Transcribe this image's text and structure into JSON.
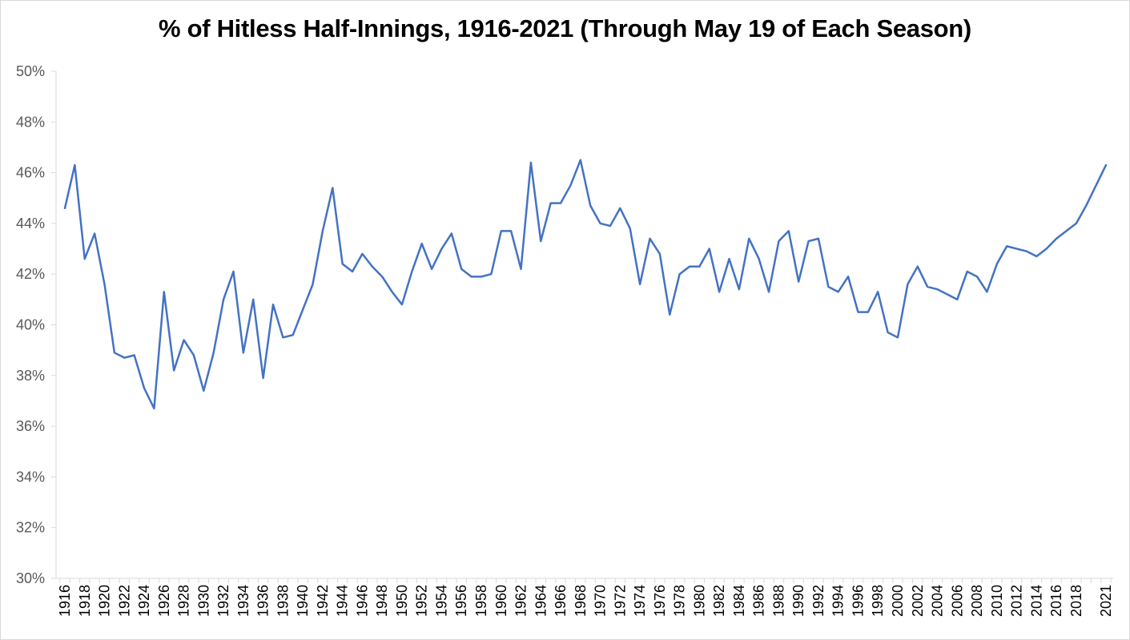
{
  "chart_data": {
    "type": "line",
    "title": "% of Hitless Half-Innings, 1916-2021 (Through May 19 of Each Season)",
    "xlabel": "",
    "ylabel": "",
    "ylim": [
      30,
      50
    ],
    "yticks": [
      "30%",
      "32%",
      "34%",
      "36%",
      "38%",
      "40%",
      "42%",
      "44%",
      "46%",
      "48%",
      "50%"
    ],
    "grid": false,
    "legend": "none",
    "line_color": "#4472C4",
    "x": [
      1916,
      1917,
      1918,
      1919,
      1920,
      1921,
      1922,
      1923,
      1924,
      1925,
      1926,
      1927,
      1928,
      1929,
      1930,
      1931,
      1932,
      1933,
      1934,
      1935,
      1936,
      1937,
      1938,
      1939,
      1940,
      1941,
      1942,
      1943,
      1944,
      1945,
      1946,
      1947,
      1948,
      1949,
      1950,
      1951,
      1952,
      1953,
      1954,
      1955,
      1956,
      1957,
      1958,
      1959,
      1960,
      1961,
      1962,
      1963,
      1964,
      1965,
      1966,
      1967,
      1968,
      1969,
      1970,
      1971,
      1972,
      1973,
      1974,
      1975,
      1976,
      1977,
      1978,
      1979,
      1980,
      1981,
      1982,
      1983,
      1984,
      1985,
      1986,
      1987,
      1988,
      1989,
      1990,
      1991,
      1992,
      1993,
      1994,
      1995,
      1996,
      1997,
      1998,
      1999,
      2000,
      2001,
      2002,
      2003,
      2004,
      2005,
      2006,
      2007,
      2008,
      2009,
      2010,
      2011,
      2012,
      2013,
      2014,
      2015,
      2016,
      2017,
      2018,
      2019,
      2021
    ],
    "xtick_labels": [
      "1916",
      "1918",
      "1920",
      "1922",
      "1924",
      "1926",
      "1928",
      "1930",
      "1932",
      "1934",
      "1936",
      "1938",
      "1940",
      "1942",
      "1944",
      "1946",
      "1948",
      "1950",
      "1952",
      "1954",
      "1956",
      "1958",
      "1960",
      "1962",
      "1964",
      "1966",
      "1968",
      "1970",
      "1972",
      "1974",
      "1976",
      "1978",
      "1980",
      "1982",
      "1984",
      "1986",
      "1988",
      "1990",
      "1992",
      "1994",
      "1996",
      "1998",
      "2000",
      "2002",
      "2004",
      "2006",
      "2008",
      "2010",
      "2012",
      "2014",
      "2016",
      "2018",
      "2021"
    ],
    "series": [
      {
        "values": [
          44.6,
          46.3,
          42.6,
          43.6,
          41.6,
          38.9,
          38.7,
          38.8,
          37.5,
          36.7,
          41.3,
          38.2,
          39.4,
          38.8,
          37.4,
          38.9,
          41.0,
          42.1,
          38.9,
          41.0,
          37.9,
          40.8,
          39.5,
          39.6,
          40.6,
          41.6,
          43.7,
          45.4,
          42.4,
          42.1,
          42.8,
          42.3,
          41.9,
          41.3,
          40.8,
          42.1,
          43.2,
          42.2,
          43.0,
          43.6,
          42.2,
          41.9,
          41.9,
          42.0,
          43.7,
          43.7,
          42.2,
          46.4,
          43.3,
          44.8,
          44.8,
          45.5,
          46.5,
          44.7,
          44.0,
          43.9,
          44.6,
          43.8,
          41.6,
          43.4,
          42.8,
          40.4,
          42.0,
          42.3,
          42.3,
          43.0,
          41.3,
          42.6,
          41.4,
          43.4,
          42.6,
          41.3,
          43.3,
          43.7,
          41.7,
          43.3,
          43.4,
          41.5,
          41.3,
          41.9,
          40.5,
          40.5,
          41.3,
          39.7,
          39.5,
          41.6,
          42.3,
          41.5,
          41.4,
          41.2,
          41.0,
          42.1,
          41.9,
          41.3,
          42.4,
          43.1,
          43.0,
          42.9,
          42.7,
          43.0,
          43.4,
          43.7,
          44.0,
          44.7,
          46.3
        ]
      }
    ]
  }
}
